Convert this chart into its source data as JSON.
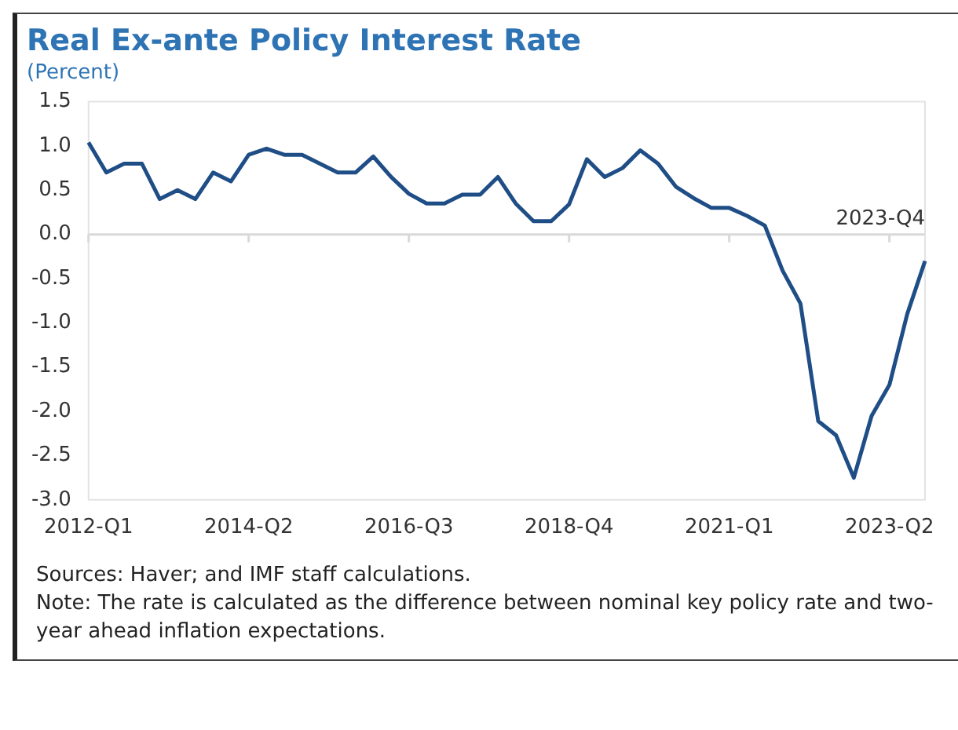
{
  "chart_data": {
    "type": "line",
    "title": "Real Ex-ante Policy Interest Rate",
    "subtitle": "(Percent)",
    "categories": [
      "2012-Q1",
      null,
      null,
      null,
      null,
      null,
      null,
      null,
      null,
      "2014-Q2",
      null,
      null,
      null,
      null,
      null,
      null,
      null,
      null,
      "2016-Q3",
      null,
      null,
      null,
      null,
      null,
      null,
      null,
      null,
      "2018-Q4",
      null,
      null,
      null,
      null,
      null,
      null,
      null,
      null,
      "2021-Q1",
      null,
      null,
      null,
      null,
      null,
      null,
      null,
      null,
      "2023-Q2",
      null,
      null
    ],
    "series": [
      {
        "color": "#1f4e86",
        "values": [
          1.04,
          0.7,
          0.8,
          0.8,
          0.4,
          0.5,
          0.4,
          0.7,
          0.6,
          0.9,
          0.97,
          0.9,
          0.9,
          0.8,
          0.7,
          0.7,
          0.88,
          0.65,
          0.46,
          0.35,
          0.35,
          0.45,
          0.45,
          0.65,
          0.35,
          0.15,
          0.15,
          0.34,
          0.85,
          0.65,
          0.75,
          0.95,
          0.8,
          0.54,
          0.41,
          0.3,
          0.3,
          0.21,
          0.1,
          -0.41,
          -0.78,
          -2.11,
          -2.27,
          -2.75,
          -2.05,
          -1.7,
          -0.9,
          -0.3
        ]
      }
    ],
    "ylim": [
      -3,
      1.5
    ],
    "yticks": [
      {
        "value": -3,
        "label": "-3.0"
      },
      {
        "value": -2.5,
        "label": "-2.5"
      },
      {
        "value": -2,
        "label": "-2.0"
      },
      {
        "value": -1.5,
        "label": "-1.5"
      },
      {
        "value": -1,
        "label": "-1.0"
      },
      {
        "value": -0.5,
        "label": "-0.5"
      },
      {
        "value": 0,
        "label": "0.0"
      },
      {
        "value": 0.5,
        "label": "0.5"
      },
      {
        "value": 1,
        "label": "1.0"
      },
      {
        "value": 1.5,
        "label": "1.5"
      }
    ],
    "ref_lines": [
      {
        "axis": "y",
        "value": 0,
        "color": "#d9d9d9"
      }
    ],
    "grid": false,
    "legend": false,
    "marker": "none",
    "line_style": "solid",
    "annotations": [
      "2023-Q4",
      "Sources: Haver; and IMF staff calculations.",
      "Note: The rate is calculated as the difference between nominal key policy rate and two-year ahead inflation expectations."
    ]
  }
}
